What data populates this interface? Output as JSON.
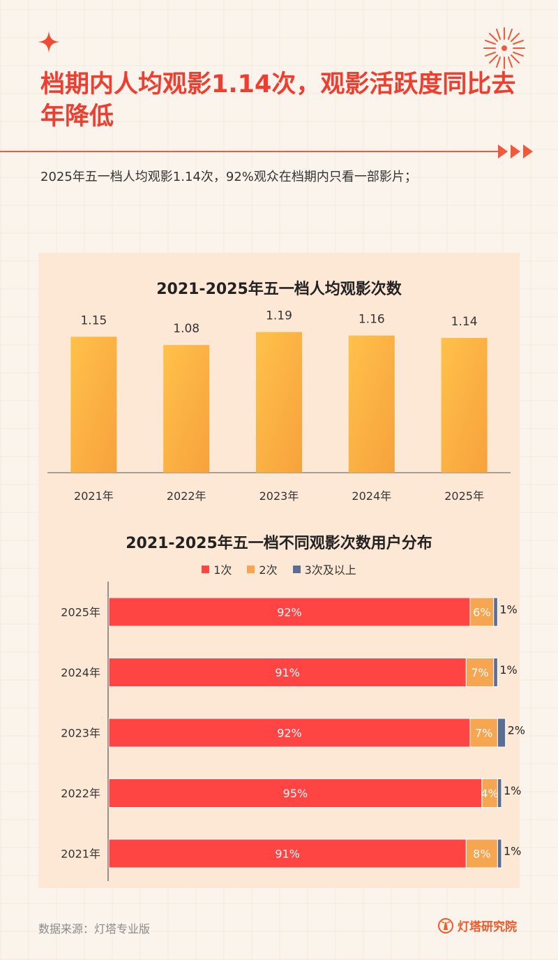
{
  "header": {
    "title": "档期内人均观影1.14次，观影活跃度同比去年降低",
    "subtitle": "2025年五一档人均观影1.14次，92%观众在档期内只看一部影片；"
  },
  "colors": {
    "accent": "#ef3d2f",
    "bar_top": "#ffc14a",
    "bar_bottom": "#f7a63a",
    "seg_1": "#ff4444",
    "seg_2": "#f6a551",
    "seg_3": "#5a6e93"
  },
  "chart_data": [
    {
      "type": "bar",
      "title": "2021-2025年五一档人均观影次数",
      "categories": [
        "2021年",
        "2022年",
        "2023年",
        "2024年",
        "2025年"
      ],
      "values": [
        1.15,
        1.08,
        1.19,
        1.16,
        1.14
      ],
      "data_labels": [
        "1.15",
        "1.08",
        "1.19",
        "1.16",
        "1.14"
      ],
      "ylim": [
        0,
        1.4
      ],
      "grid": false
    },
    {
      "type": "bar",
      "orientation": "horizontal",
      "stacked": true,
      "title": "2021-2025年五一档不同观影次数用户分布",
      "categories": [
        "2025年",
        "2024年",
        "2023年",
        "2022年",
        "2021年"
      ],
      "series": [
        {
          "name": "1次",
          "values": [
            92,
            91,
            92,
            95,
            91
          ],
          "labels": [
            "92%",
            "91%",
            "92%",
            "95%",
            "91%"
          ]
        },
        {
          "name": "2次",
          "values": [
            6,
            7,
            7,
            4,
            8
          ],
          "labels": [
            "6%",
            "7%",
            "7%",
            "4%",
            "8%"
          ]
        },
        {
          "name": "3次及以上",
          "values": [
            1,
            1,
            2,
            1,
            1
          ],
          "labels": [
            "1%",
            "1%",
            "2%",
            "1%",
            "1%"
          ]
        }
      ],
      "legend_position": "top-center",
      "grid": false
    }
  ],
  "footer": {
    "source": "数据来源：灯塔专业版",
    "brand": "灯塔研究院"
  }
}
